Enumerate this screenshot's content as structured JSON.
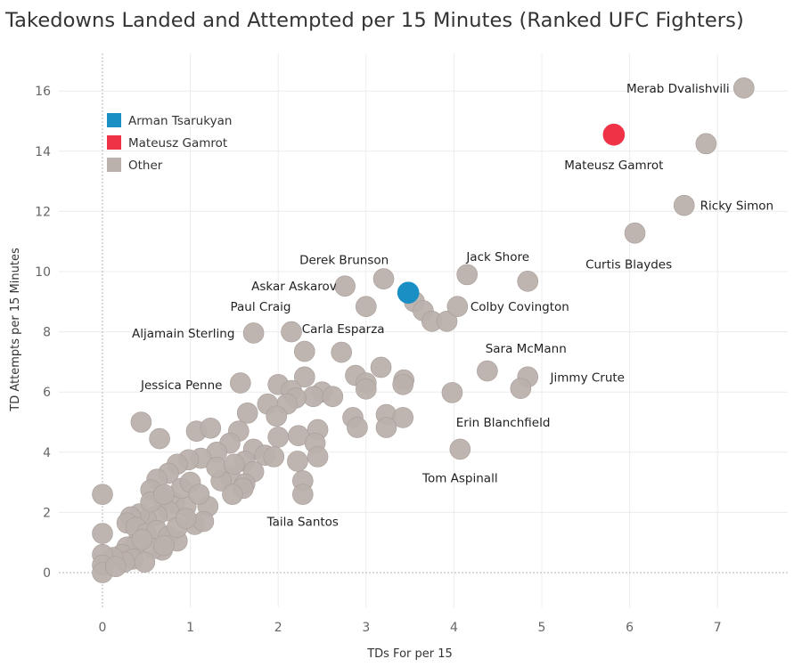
{
  "chart_data": {
    "type": "scatter",
    "title": "Takedowns Landed and Attempted per 15 Minutes (Ranked UFC Fighters)",
    "xlabel": "TDs For per 15",
    "ylabel": "TD Attempts per 15 Minutes",
    "xlim": [
      -0.5,
      7.8
    ],
    "ylim": [
      -1.2,
      17.2
    ],
    "x_ticks": [
      0,
      1,
      2,
      3,
      4,
      5,
      6,
      7
    ],
    "y_ticks": [
      0,
      2,
      4,
      6,
      8,
      10,
      12,
      14,
      16
    ],
    "grid": true,
    "legend_position": "top-left",
    "legend": [
      {
        "name": "Arman Tsarukyan",
        "color": "#1a8fc4"
      },
      {
        "name": "Mateusz Gamrot",
        "color": "#ef3246"
      },
      {
        "name": "Other",
        "color": "#bbb1ac"
      }
    ],
    "highlighted": [
      {
        "name": "Arman Tsarukyan",
        "x": 3.48,
        "y": 9.3
      },
      {
        "name": "Mateusz Gamrot",
        "x": 5.82,
        "y": 14.55
      }
    ],
    "labeled_points": [
      {
        "name": "Merab Dvalishvili",
        "x": 7.3,
        "y": 16.1
      },
      {
        "name": "Mateusz Gamrot",
        "x": 5.82,
        "y": 14.55
      },
      {
        "name": "Ricky Simon",
        "x": 6.62,
        "y": 12.2
      },
      {
        "name": "Curtis Blaydes",
        "x": 6.06,
        "y": 11.28
      },
      {
        "name": "Jack Shore",
        "x": 4.84,
        "y": 9.68
      },
      {
        "name": "Derek Brunson",
        "x": 3.2,
        "y": 9.76
      },
      {
        "name": "Askar Askarov",
        "x": 2.76,
        "y": 9.52
      },
      {
        "name": "Colby Covington",
        "x": 4.04,
        "y": 8.84
      },
      {
        "name": "Paul Craig",
        "x": 2.15,
        "y": 8.0
      },
      {
        "name": "Aljamain Sterling",
        "x": 1.72,
        "y": 7.96
      },
      {
        "name": "Carla Esparza",
        "x": 2.72,
        "y": 7.32
      },
      {
        "name": "Sara McMann",
        "x": 4.38,
        "y": 6.7
      },
      {
        "name": "Jimmy Crute",
        "x": 4.84,
        "y": 6.5
      },
      {
        "name": "Jessica Penne",
        "x": 1.57,
        "y": 6.3
      },
      {
        "name": "Erin Blanchfield",
        "x": 3.98,
        "y": 5.98
      },
      {
        "name": "Tom Aspinall",
        "x": 4.07,
        "y": 4.1
      },
      {
        "name": "Taila Santos",
        "x": 2.28,
        "y": 2.6
      }
    ],
    "annotations": [
      {
        "text": "Merab Dvalishvili",
        "x": 6.55,
        "y": 16.1
      },
      {
        "text": "Mateusz Gamrot",
        "x": 5.82,
        "y": 13.55
      },
      {
        "text": "Ricky Simon",
        "x": 7.22,
        "y": 12.2
      },
      {
        "text": "Curtis Blaydes",
        "x": 5.99,
        "y": 10.25
      },
      {
        "text": "Jack Shore",
        "x": 4.5,
        "y": 10.5
      },
      {
        "text": "Derek Brunson",
        "x": 2.75,
        "y": 10.4
      },
      {
        "text": "Askar Askarov",
        "x": 2.18,
        "y": 9.52
      },
      {
        "text": "Colby Covington",
        "x": 4.75,
        "y": 8.84
      },
      {
        "text": "Paul Craig",
        "x": 1.8,
        "y": 8.85
      },
      {
        "text": "Aljamain Sterling",
        "x": 0.92,
        "y": 7.96
      },
      {
        "text": "Carla Esparza",
        "x": 2.74,
        "y": 8.1
      },
      {
        "text": "Sara McMann",
        "x": 4.82,
        "y": 7.45
      },
      {
        "text": "Jimmy Crute",
        "x": 5.52,
        "y": 6.5
      },
      {
        "text": "Jessica Penne",
        "x": 0.9,
        "y": 6.25
      },
      {
        "text": "Erin Blanchfield",
        "x": 4.56,
        "y": 5.0
      },
      {
        "text": "Tom Aspinall",
        "x": 4.07,
        "y": 3.15
      },
      {
        "text": "Taila Santos",
        "x": 2.28,
        "y": 1.7
      }
    ],
    "other_points": [
      [
        7.3,
        16.1
      ],
      [
        6.87,
        14.25
      ],
      [
        6.62,
        12.2
      ],
      [
        6.06,
        11.28
      ],
      [
        4.84,
        9.68
      ],
      [
        4.15,
        9.9
      ],
      [
        3.2,
        9.76
      ],
      [
        2.76,
        9.52
      ],
      [
        3.55,
        9.0
      ],
      [
        3.65,
        8.7
      ],
      [
        3.75,
        8.35
      ],
      [
        3.92,
        8.35
      ],
      [
        4.04,
        8.84
      ],
      [
        3.0,
        8.84
      ],
      [
        2.15,
        8.0
      ],
      [
        1.72,
        7.96
      ],
      [
        2.3,
        7.35
      ],
      [
        2.72,
        7.32
      ],
      [
        3.17,
        6.82
      ],
      [
        2.88,
        6.55
      ],
      [
        3.0,
        6.3
      ],
      [
        3.0,
        6.1
      ],
      [
        3.43,
        6.4
      ],
      [
        3.42,
        6.25
      ],
      [
        4.38,
        6.7
      ],
      [
        4.84,
        6.5
      ],
      [
        4.76,
        6.12
      ],
      [
        3.98,
        5.98
      ],
      [
        1.57,
        6.3
      ],
      [
        2.3,
        6.5
      ],
      [
        2.0,
        6.25
      ],
      [
        2.15,
        6.05
      ],
      [
        2.5,
        6.0
      ],
      [
        2.4,
        5.85
      ],
      [
        2.62,
        5.85
      ],
      [
        2.2,
        5.8
      ],
      [
        2.1,
        5.6
      ],
      [
        1.88,
        5.6
      ],
      [
        1.65,
        5.3
      ],
      [
        1.98,
        5.2
      ],
      [
        2.85,
        5.15
      ],
      [
        3.23,
        5.25
      ],
      [
        3.42,
        5.15
      ],
      [
        3.23,
        4.82
      ],
      [
        2.9,
        4.82
      ],
      [
        2.45,
        4.75
      ],
      [
        2.23,
        4.55
      ],
      [
        2.0,
        4.5
      ],
      [
        2.42,
        4.3
      ],
      [
        1.72,
        4.1
      ],
      [
        1.85,
        3.9
      ],
      [
        1.95,
        3.85
      ],
      [
        2.45,
        3.85
      ],
      [
        2.22,
        3.7
      ],
      [
        2.28,
        3.05
      ],
      [
        2.28,
        2.6
      ],
      [
        4.07,
        4.1
      ],
      [
        0.44,
        5.0
      ],
      [
        0.65,
        4.45
      ],
      [
        1.07,
        4.7
      ],
      [
        1.23,
        4.8
      ],
      [
        1.55,
        4.7
      ],
      [
        1.45,
        4.3
      ],
      [
        1.3,
        4.0
      ],
      [
        1.12,
        3.8
      ],
      [
        0.98,
        3.75
      ],
      [
        1.62,
        3.7
      ],
      [
        1.72,
        3.35
      ],
      [
        1.45,
        3.2
      ],
      [
        1.35,
        3.05
      ],
      [
        1.62,
        2.95
      ],
      [
        1.6,
        2.8
      ],
      [
        1.48,
        2.6
      ],
      [
        1.2,
        2.2
      ],
      [
        1.05,
        1.6
      ],
      [
        1.15,
        1.7
      ],
      [
        0.85,
        3.6
      ],
      [
        0.75,
        3.3
      ],
      [
        0.62,
        3.1
      ],
      [
        0.55,
        2.75
      ],
      [
        0.68,
        2.5
      ],
      [
        0.82,
        2.3
      ],
      [
        0.95,
        2.2
      ],
      [
        0.75,
        2.05
      ],
      [
        0.62,
        1.9
      ],
      [
        0.5,
        1.75
      ],
      [
        0.42,
        1.95
      ],
      [
        0.32,
        1.85
      ],
      [
        0.28,
        1.65
      ],
      [
        0.38,
        1.5
      ],
      [
        0.5,
        1.3
      ],
      [
        0.62,
        1.4
      ],
      [
        0.75,
        1.2
      ],
      [
        0.85,
        1.05
      ],
      [
        0.68,
        0.75
      ],
      [
        0.58,
        0.8
      ],
      [
        0.38,
        0.95
      ],
      [
        0.28,
        0.85
      ],
      [
        0.22,
        0.6
      ],
      [
        0.35,
        0.45
      ],
      [
        0.48,
        0.35
      ],
      [
        0.25,
        0.35
      ],
      [
        0.12,
        0.5
      ],
      [
        0.0,
        0.6
      ],
      [
        0.0,
        0.25
      ],
      [
        0.0,
        0.0
      ],
      [
        0.0,
        1.3
      ],
      [
        0.0,
        2.6
      ],
      [
        0.9,
        2.8
      ],
      [
        1.0,
        3.0
      ],
      [
        1.1,
        2.6
      ],
      [
        1.3,
        3.5
      ],
      [
        1.5,
        3.6
      ],
      [
        0.55,
        2.35
      ],
      [
        0.45,
        1.1
      ],
      [
        0.15,
        0.2
      ],
      [
        0.7,
        0.9
      ],
      [
        0.85,
        1.5
      ],
      [
        0.95,
        1.8
      ],
      [
        0.7,
        2.6
      ]
    ]
  }
}
